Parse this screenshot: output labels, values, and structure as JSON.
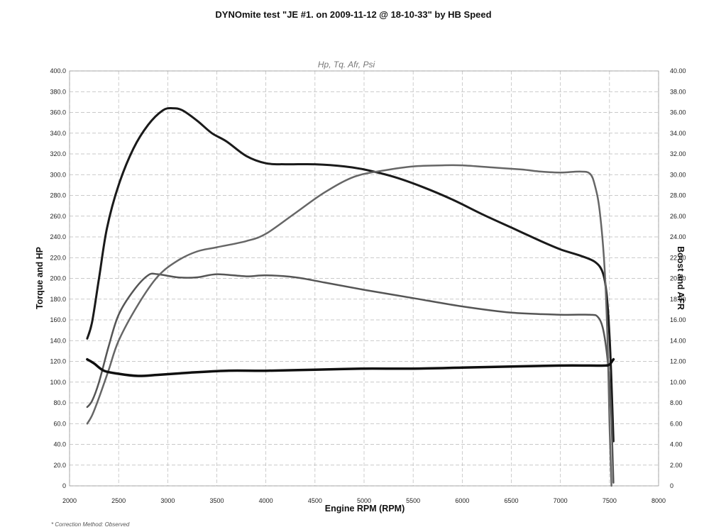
{
  "chart_data": {
    "type": "line",
    "title": "DYNOmite test \"JE  #1. on 2009-11-12 @ 18-10-33\" by HB Speed",
    "subtitle": "Hp, Tq.  Afr, Psi",
    "xlabel": "Engine RPM (RPM)",
    "ylabel": "Torque and HP",
    "y2label": "Boost and AFR",
    "note": "* Correction Method: Observed",
    "xlim": [
      2000,
      8000
    ],
    "ylim": [
      0,
      400
    ],
    "y2lim": [
      0,
      40
    ],
    "grid": true,
    "x_ticks": [
      "2000",
      "2500",
      "3000",
      "3500",
      "4000",
      "4500",
      "5000",
      "5500",
      "6000",
      "6500",
      "7000",
      "7500",
      "8000"
    ],
    "y_ticks": [
      "0",
      "20.0",
      "40.0",
      "60.0",
      "80.0",
      "100.0",
      "120.0",
      "140.0",
      "160.0",
      "180.0",
      "200.0",
      "220.0",
      "240.0",
      "260.0",
      "280.0",
      "300.0",
      "320.0",
      "340.0",
      "360.0",
      "380.0",
      "400.0"
    ],
    "y2_ticks": [
      "0",
      "2.00",
      "4.00",
      "6.00",
      "8.00",
      "10.00",
      "12.00",
      "14.00",
      "16.00",
      "18.00",
      "20.00",
      "22.00",
      "24.00",
      "26.00",
      "28.00",
      "30.00",
      "32.00",
      "34.00",
      "36.00",
      "38.00",
      "40.00"
    ],
    "series": [
      {
        "axis": "left",
        "color": "#1a1a1a",
        "width": 3,
        "points": [
          [
            2180,
            142
          ],
          [
            2230,
            158
          ],
          [
            2300,
            200
          ],
          [
            2380,
            248
          ],
          [
            2500,
            290
          ],
          [
            2650,
            325
          ],
          [
            2800,
            348
          ],
          [
            2950,
            362
          ],
          [
            3050,
            364
          ],
          [
            3150,
            362
          ],
          [
            3300,
            352
          ],
          [
            3450,
            340
          ],
          [
            3600,
            332
          ],
          [
            3800,
            318
          ],
          [
            4000,
            311
          ],
          [
            4200,
            310
          ],
          [
            4500,
            310
          ],
          [
            4800,
            308
          ],
          [
            5000,
            305
          ],
          [
            5300,
            298
          ],
          [
            5600,
            288
          ],
          [
            5900,
            276
          ],
          [
            6200,
            262
          ],
          [
            6500,
            249
          ],
          [
            6800,
            236
          ],
          [
            7000,
            228
          ],
          [
            7200,
            222
          ],
          [
            7350,
            216
          ],
          [
            7430,
            206
          ],
          [
            7470,
            185
          ],
          [
            7500,
            145
          ],
          [
            7520,
            100
          ],
          [
            7540,
            43
          ]
        ]
      },
      {
        "axis": "left",
        "color": "#555555",
        "width": 2.5,
        "points": [
          [
            2180,
            76
          ],
          [
            2230,
            82
          ],
          [
            2300,
            100
          ],
          [
            2400,
            135
          ],
          [
            2500,
            165
          ],
          [
            2650,
            188
          ],
          [
            2800,
            203
          ],
          [
            2900,
            204
          ],
          [
            3100,
            201
          ],
          [
            3300,
            201
          ],
          [
            3500,
            204
          ],
          [
            3800,
            202
          ],
          [
            4000,
            203
          ],
          [
            4300,
            201
          ],
          [
            4600,
            196
          ],
          [
            5000,
            189
          ],
          [
            5500,
            181
          ],
          [
            6000,
            173
          ],
          [
            6500,
            167
          ],
          [
            7000,
            165
          ],
          [
            7300,
            165
          ],
          [
            7380,
            163
          ],
          [
            7430,
            153
          ],
          [
            7470,
            130
          ],
          [
            7500,
            100
          ],
          [
            7520,
            65
          ],
          [
            7540,
            3
          ]
        ]
      },
      {
        "axis": "left",
        "color": "#666666",
        "width": 2.5,
        "points": [
          [
            2180,
            60
          ],
          [
            2230,
            68
          ],
          [
            2300,
            85
          ],
          [
            2400,
            112
          ],
          [
            2500,
            140
          ],
          [
            2700,
            175
          ],
          [
            2900,
            202
          ],
          [
            3100,
            217
          ],
          [
            3300,
            226
          ],
          [
            3500,
            230
          ],
          [
            3800,
            236
          ],
          [
            4000,
            243
          ],
          [
            4300,
            263
          ],
          [
            4600,
            283
          ],
          [
            4900,
            298
          ],
          [
            5200,
            304
          ],
          [
            5500,
            308
          ],
          [
            5800,
            309
          ],
          [
            6000,
            309
          ],
          [
            6300,
            307
          ],
          [
            6600,
            305
          ],
          [
            6800,
            303
          ],
          [
            7000,
            302
          ],
          [
            7200,
            303
          ],
          [
            7300,
            301
          ],
          [
            7350,
            290
          ],
          [
            7400,
            265
          ],
          [
            7450,
            210
          ],
          [
            7480,
            140
          ],
          [
            7500,
            60
          ],
          [
            7520,
            0
          ]
        ]
      },
      {
        "axis": "right",
        "color": "#0f0f0f",
        "width": 3.5,
        "points": [
          [
            2180,
            12.2
          ],
          [
            2250,
            11.8
          ],
          [
            2350,
            11.1
          ],
          [
            2500,
            10.8
          ],
          [
            2700,
            10.6
          ],
          [
            2900,
            10.7
          ],
          [
            3200,
            10.9
          ],
          [
            3600,
            11.1
          ],
          [
            4000,
            11.1
          ],
          [
            4500,
            11.2
          ],
          [
            5000,
            11.3
          ],
          [
            5500,
            11.3
          ],
          [
            6000,
            11.4
          ],
          [
            6500,
            11.5
          ],
          [
            7000,
            11.6
          ],
          [
            7300,
            11.6
          ],
          [
            7450,
            11.6
          ],
          [
            7500,
            11.7
          ],
          [
            7540,
            12.2
          ]
        ]
      }
    ]
  }
}
